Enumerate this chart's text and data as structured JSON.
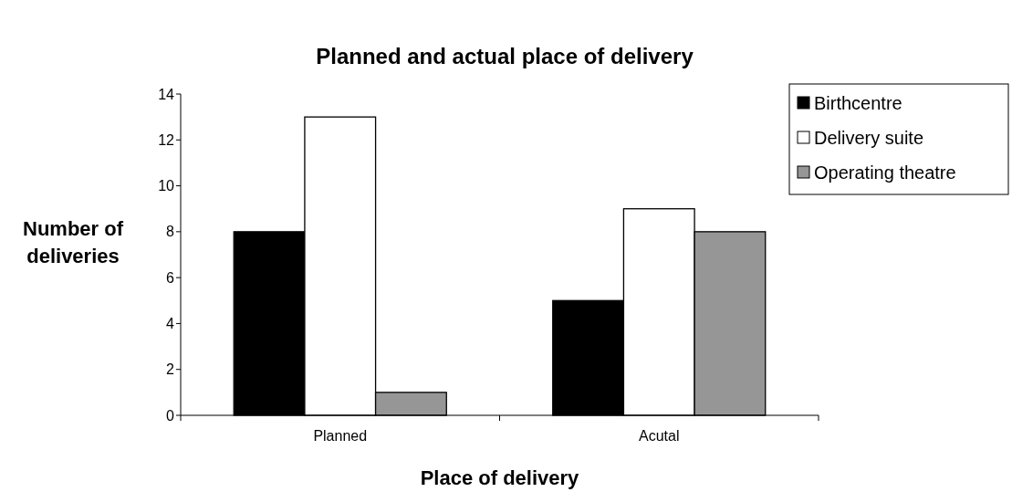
{
  "chart_data": {
    "type": "bar",
    "title": "Planned and actual place of delivery",
    "xlabel": "Place of delivery",
    "ylabel": "Number of deliveries",
    "categories": [
      "Planned",
      "Acutal"
    ],
    "series": [
      {
        "name": "Birthcentre",
        "color": "#000000",
        "values": [
          8,
          5
        ]
      },
      {
        "name": "Delivery suite",
        "color": "#ffffff",
        "values": [
          13,
          9
        ]
      },
      {
        "name": "Operating theatre",
        "color": "#969696",
        "values": [
          1,
          8
        ]
      }
    ],
    "ylim": [
      0,
      14
    ],
    "yticks": [
      0,
      2,
      4,
      6,
      8,
      10,
      12,
      14
    ],
    "grid": false,
    "legend": "top right"
  }
}
